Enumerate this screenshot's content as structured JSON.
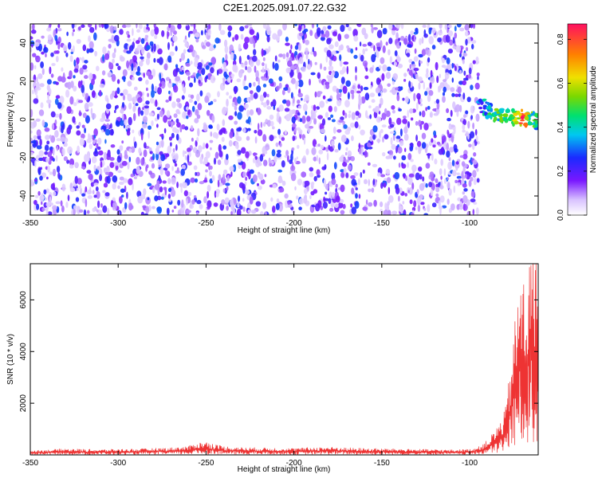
{
  "title": "C2E1.2025.091.07.22.G32",
  "chart_data": [
    {
      "type": "heatmap",
      "xlabel": "Height of straight line (km)",
      "ylabel": "Frequency (Hz)",
      "xlim": [
        -350,
        -61
      ],
      "ylim": [
        -50,
        50
      ],
      "xticks": [
        -350,
        -300,
        -250,
        -200,
        -150,
        -100
      ],
      "yticks": [
        -40,
        -20,
        0,
        20,
        40
      ],
      "colorbar": {
        "label": "Normalized spectral amplitude",
        "range": [
          0,
          0.87
        ],
        "ticks": [
          0.0,
          0.2,
          0.4,
          0.6,
          0.8
        ]
      },
      "noise_region": {
        "x": [
          -350,
          -95
        ],
        "amplitude": [
          0.05,
          0.3
        ]
      },
      "signal_trace": {
        "x": [
          -95,
          -90,
          -85,
          -80,
          -75,
          -70,
          -65,
          -61
        ],
        "frequency": [
          9,
          5,
          3,
          2,
          1,
          1,
          0,
          -1
        ],
        "amplitude": [
          0.4,
          0.5,
          0.55,
          0.6,
          0.62,
          0.87,
          0.6,
          0.5
        ]
      },
      "background_after_x": -95,
      "grid": false
    },
    {
      "type": "line",
      "xlabel": "Height of straight line (km)",
      "ylabel": "SNR (10 * v/v)",
      "xlim": [
        -350,
        -61
      ],
      "ylim": [
        0,
        7400
      ],
      "xticks": [
        -350,
        -300,
        -250,
        -200,
        -150,
        -100
      ],
      "yticks": [
        2000,
        4000,
        6000
      ],
      "color": "#ee3333",
      "series": [
        {
          "x": [
            -350,
            -340,
            -330,
            -320,
            -310,
            -300,
            -290,
            -280,
            -270,
            -260,
            -255,
            -250,
            -245,
            -240,
            -230,
            -220,
            -210,
            -200,
            -190,
            -180,
            -170,
            -160,
            -150,
            -140,
            -130,
            -120,
            -110,
            -100,
            -95,
            -90,
            -85,
            -80,
            -78,
            -76,
            -74,
            -72,
            -70,
            -68,
            -66,
            -64,
            -62,
            -61
          ],
          "y": [
            150,
            180,
            220,
            200,
            190,
            200,
            210,
            230,
            250,
            300,
            420,
            450,
            380,
            300,
            260,
            250,
            240,
            230,
            260,
            280,
            250,
            230,
            220,
            210,
            200,
            190,
            180,
            200,
            280,
            500,
            900,
            1500,
            2400,
            3600,
            4700,
            5800,
            6300,
            5600,
            6600,
            7400,
            6800,
            5200
          ]
        }
      ]
    }
  ]
}
